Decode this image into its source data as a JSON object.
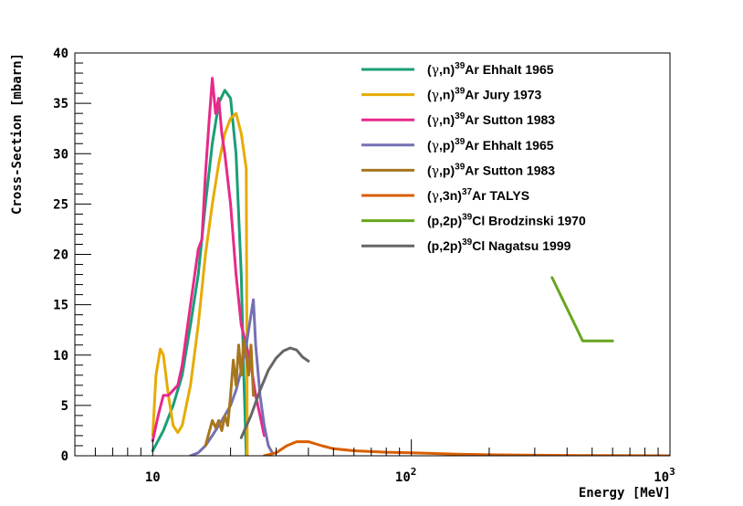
{
  "chart_data": {
    "type": "line",
    "xscale": "log",
    "xlabel": "Energy [MeV]",
    "ylabel": "Cross-Section [mbarn]",
    "xlim": [
      5,
      1000
    ],
    "ylim": [
      0,
      40
    ],
    "yticks": [
      "0",
      "5",
      "10",
      "15",
      "20",
      "25",
      "30",
      "35",
      "40"
    ],
    "xticks": [
      {
        "value": 10,
        "label": "10",
        "exp": ""
      },
      {
        "value": 100,
        "label": "10",
        "exp": "2"
      },
      {
        "value": 1000,
        "label": "10",
        "exp": "3"
      }
    ],
    "legend_position": "top-right",
    "series": [
      {
        "name": "Ehhalt 1965 (γ,n)",
        "legend": {
          "pre": "(",
          "greek": "γ",
          "mid": ",n)",
          "sup": "39",
          "post": "Ar Ehhalt 1965"
        },
        "color": "#1b9e77",
        "points": [
          [
            10,
            0.5
          ],
          [
            11,
            2.5
          ],
          [
            12,
            5
          ],
          [
            13,
            8
          ],
          [
            14,
            13
          ],
          [
            15,
            18
          ],
          [
            16,
            25
          ],
          [
            17,
            31
          ],
          [
            18,
            35
          ],
          [
            19,
            36.3
          ],
          [
            20,
            35.5
          ],
          [
            21,
            30
          ],
          [
            22,
            18
          ],
          [
            22.5,
            8
          ],
          [
            23,
            0
          ]
        ]
      },
      {
        "name": "Jury 1973 (γ,n)",
        "legend": {
          "pre": "(",
          "greek": "γ",
          "mid": ",n)",
          "sup": "39",
          "post": "Ar Jury 1973"
        },
        "color": "#e6ab02",
        "points": [
          [
            10,
            2
          ],
          [
            10.3,
            8
          ],
          [
            10.7,
            10.6
          ],
          [
            11,
            10
          ],
          [
            11.5,
            6
          ],
          [
            12,
            3
          ],
          [
            12.5,
            2.3
          ],
          [
            13,
            3
          ],
          [
            14,
            7
          ],
          [
            15,
            13
          ],
          [
            16,
            20
          ],
          [
            17,
            25
          ],
          [
            18,
            29
          ],
          [
            19,
            32
          ],
          [
            20,
            33.5
          ],
          [
            21,
            34
          ],
          [
            22,
            32
          ],
          [
            23,
            28.5
          ],
          [
            23.2,
            0
          ]
        ]
      },
      {
        "name": "Sutton 1983 (γ,n)",
        "legend": {
          "pre": "(",
          "greek": "γ",
          "mid": ",n)",
          "sup": "39",
          "post": "Ar Sutton 1983"
        },
        "color": "#e7298a",
        "points": [
          [
            10,
            1.5
          ],
          [
            10.5,
            4
          ],
          [
            11,
            6
          ],
          [
            11.5,
            6
          ],
          [
            12,
            6.5
          ],
          [
            12.5,
            7
          ],
          [
            13,
            9
          ],
          [
            14,
            15
          ],
          [
            15,
            20.5
          ],
          [
            15.5,
            21.5
          ],
          [
            16,
            28
          ],
          [
            16.5,
            33
          ],
          [
            17,
            37.5
          ],
          [
            17.5,
            34
          ],
          [
            18,
            35.5
          ],
          [
            18.5,
            32
          ],
          [
            19,
            30
          ],
          [
            20,
            25
          ],
          [
            21,
            18
          ],
          [
            22,
            13
          ],
          [
            23,
            11
          ],
          [
            24,
            9
          ],
          [
            25,
            6
          ],
          [
            26,
            4
          ],
          [
            27,
            2
          ]
        ]
      },
      {
        "name": "Ehhalt 1965 (γ,p)",
        "legend": {
          "pre": "(",
          "greek": "γ",
          "mid": ",p)",
          "sup": "39",
          "post": "Ar Ehhalt 1965"
        },
        "color": "#7570b3",
        "points": [
          [
            14,
            0
          ],
          [
            15,
            0.3
          ],
          [
            16,
            1
          ],
          [
            17,
            2
          ],
          [
            18,
            3
          ],
          [
            19,
            4
          ],
          [
            20,
            5
          ],
          [
            21,
            6.5
          ],
          [
            22,
            8.5
          ],
          [
            23,
            11
          ],
          [
            24,
            14
          ],
          [
            24.5,
            15.5
          ],
          [
            25,
            11
          ],
          [
            26,
            6
          ],
          [
            27,
            3
          ],
          [
            28,
            1
          ],
          [
            29,
            0.3
          ]
        ]
      },
      {
        "name": "Sutton 1983 (γ,p)",
        "legend": {
          "pre": "(",
          "greek": "γ",
          "mid": ",p)",
          "sup": "39",
          "post": "Ar Sutton 1983"
        },
        "color": "#a6761d",
        "points": [
          [
            16,
            1
          ],
          [
            17,
            3.5
          ],
          [
            17.5,
            2.8
          ],
          [
            18,
            3.5
          ],
          [
            18.5,
            2.5
          ],
          [
            19,
            4
          ],
          [
            19.5,
            3
          ],
          [
            20,
            6
          ],
          [
            20.5,
            9.5
          ],
          [
            21,
            7
          ],
          [
            21.5,
            11
          ],
          [
            22,
            8
          ],
          [
            22.5,
            11.5
          ],
          [
            23,
            10
          ],
          [
            23.5,
            8
          ],
          [
            24,
            11
          ],
          [
            24.5,
            6
          ]
        ]
      },
      {
        "name": "TALYS (γ,3n)",
        "legend": {
          "pre": "(",
          "greek": "γ",
          "mid": ",3n)",
          "sup": "37",
          "post": "Ar TALYS"
        },
        "color": "#d95f02",
        "points": [
          [
            27,
            0
          ],
          [
            30,
            0.3
          ],
          [
            33,
            1
          ],
          [
            36,
            1.4
          ],
          [
            40,
            1.4
          ],
          [
            45,
            1
          ],
          [
            50,
            0.7
          ],
          [
            60,
            0.5
          ],
          [
            80,
            0.35
          ],
          [
            100,
            0.3
          ],
          [
            150,
            0.15
          ],
          [
            200,
            0.1
          ],
          [
            300,
            0.05
          ],
          [
            500,
            0.02
          ],
          [
            1000,
            0
          ]
        ]
      },
      {
        "name": "Brodzinski 1970 (p,2p)",
        "legend": {
          "pre": "(p,2p)",
          "greek": "",
          "mid": "",
          "sup": "39",
          "post": "Cl Brodzinski 1970"
        },
        "color": "#66a61e",
        "points": [
          [
            350,
            17.7
          ],
          [
            460,
            11.4
          ],
          [
            600,
            11.4
          ]
        ]
      },
      {
        "name": "Nagatsu 1999 (p,2p)",
        "legend": {
          "pre": "(p,2p)",
          "greek": "",
          "mid": "",
          "sup": "39",
          "post": "Cl Nagatsu 1999"
        },
        "color": "#666666",
        "points": [
          [
            22,
            1.8
          ],
          [
            24,
            4
          ],
          [
            26,
            6.5
          ],
          [
            28,
            8.5
          ],
          [
            30,
            9.7
          ],
          [
            32,
            10.4
          ],
          [
            34,
            10.7
          ],
          [
            36,
            10.5
          ],
          [
            38,
            9.8
          ],
          [
            40,
            9.4
          ]
        ]
      }
    ]
  }
}
